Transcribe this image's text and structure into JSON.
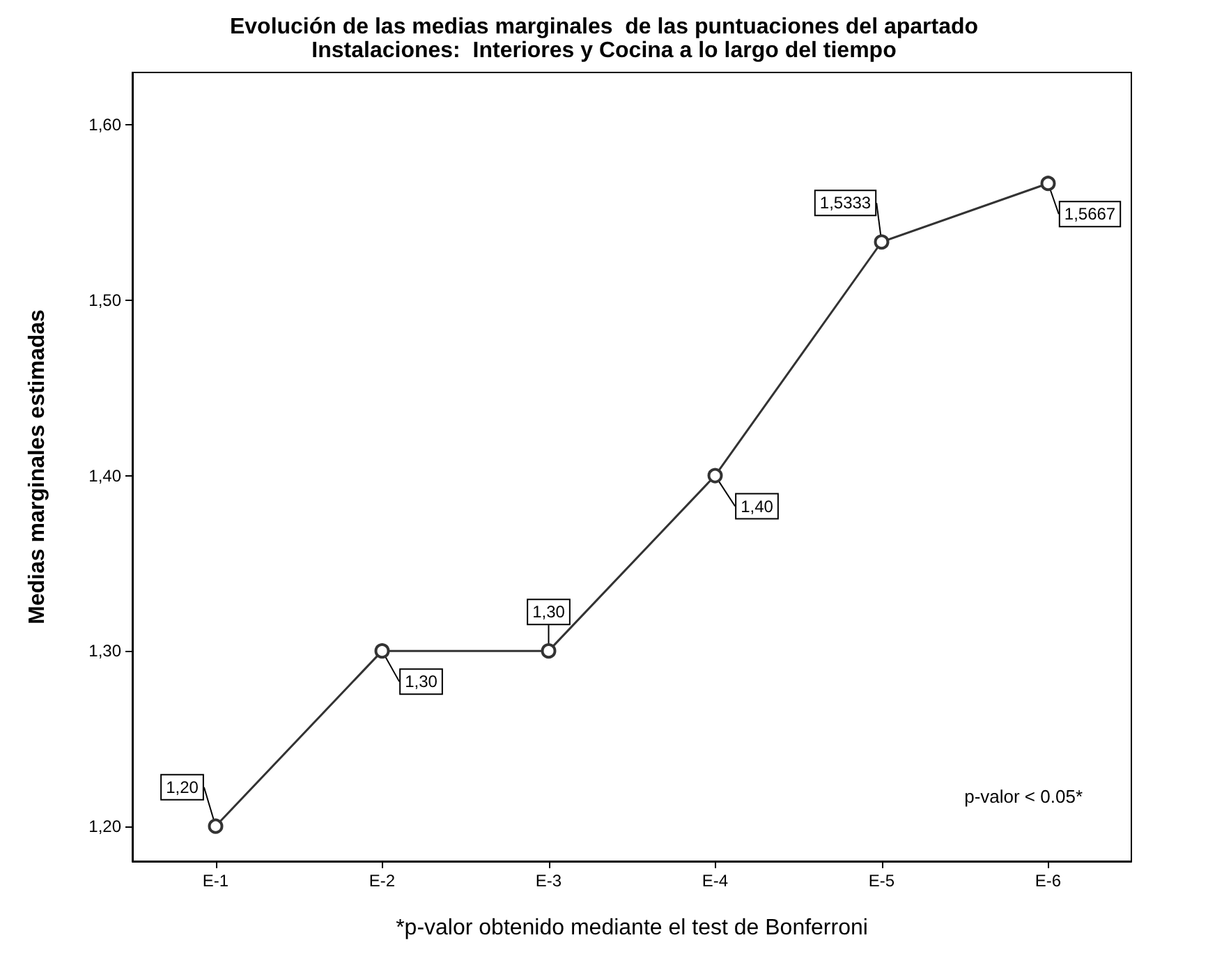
{
  "chart_data": {
    "type": "line",
    "title": "Evolución de las medias marginales  de las puntuaciones del apartado\nInstalaciones:  Interiores y Cocina a lo largo del tiempo",
    "xlabel": "*p-valor obtenido mediante el test de Bonferroni",
    "ylabel": "Medias marginales estimadas",
    "categories": [
      "E-1",
      "E-2",
      "E-3",
      "E-4",
      "E-5",
      "E-6"
    ],
    "series": [
      {
        "color": "#333333",
        "values": [
          1.2,
          1.3,
          1.3,
          1.4,
          1.5333,
          1.5667
        ],
        "value_labels": [
          "1,20",
          "1,30",
          "1,30",
          "1,40",
          "1,5333",
          "1,5667"
        ]
      }
    ],
    "ylim": [
      1.18,
      1.63
    ],
    "yticks": [
      {
        "value": 1.2,
        "label": "1,20"
      },
      {
        "value": 1.3,
        "label": "1,30"
      },
      {
        "value": 1.4,
        "label": "1,40"
      },
      {
        "value": 1.5,
        "label": "1,50"
      },
      {
        "value": 1.6,
        "label": "1,60"
      }
    ],
    "annotations": [
      "p-valor < 0.05*"
    ],
    "marker": "circle",
    "line_style": "solid",
    "grid": false
  }
}
